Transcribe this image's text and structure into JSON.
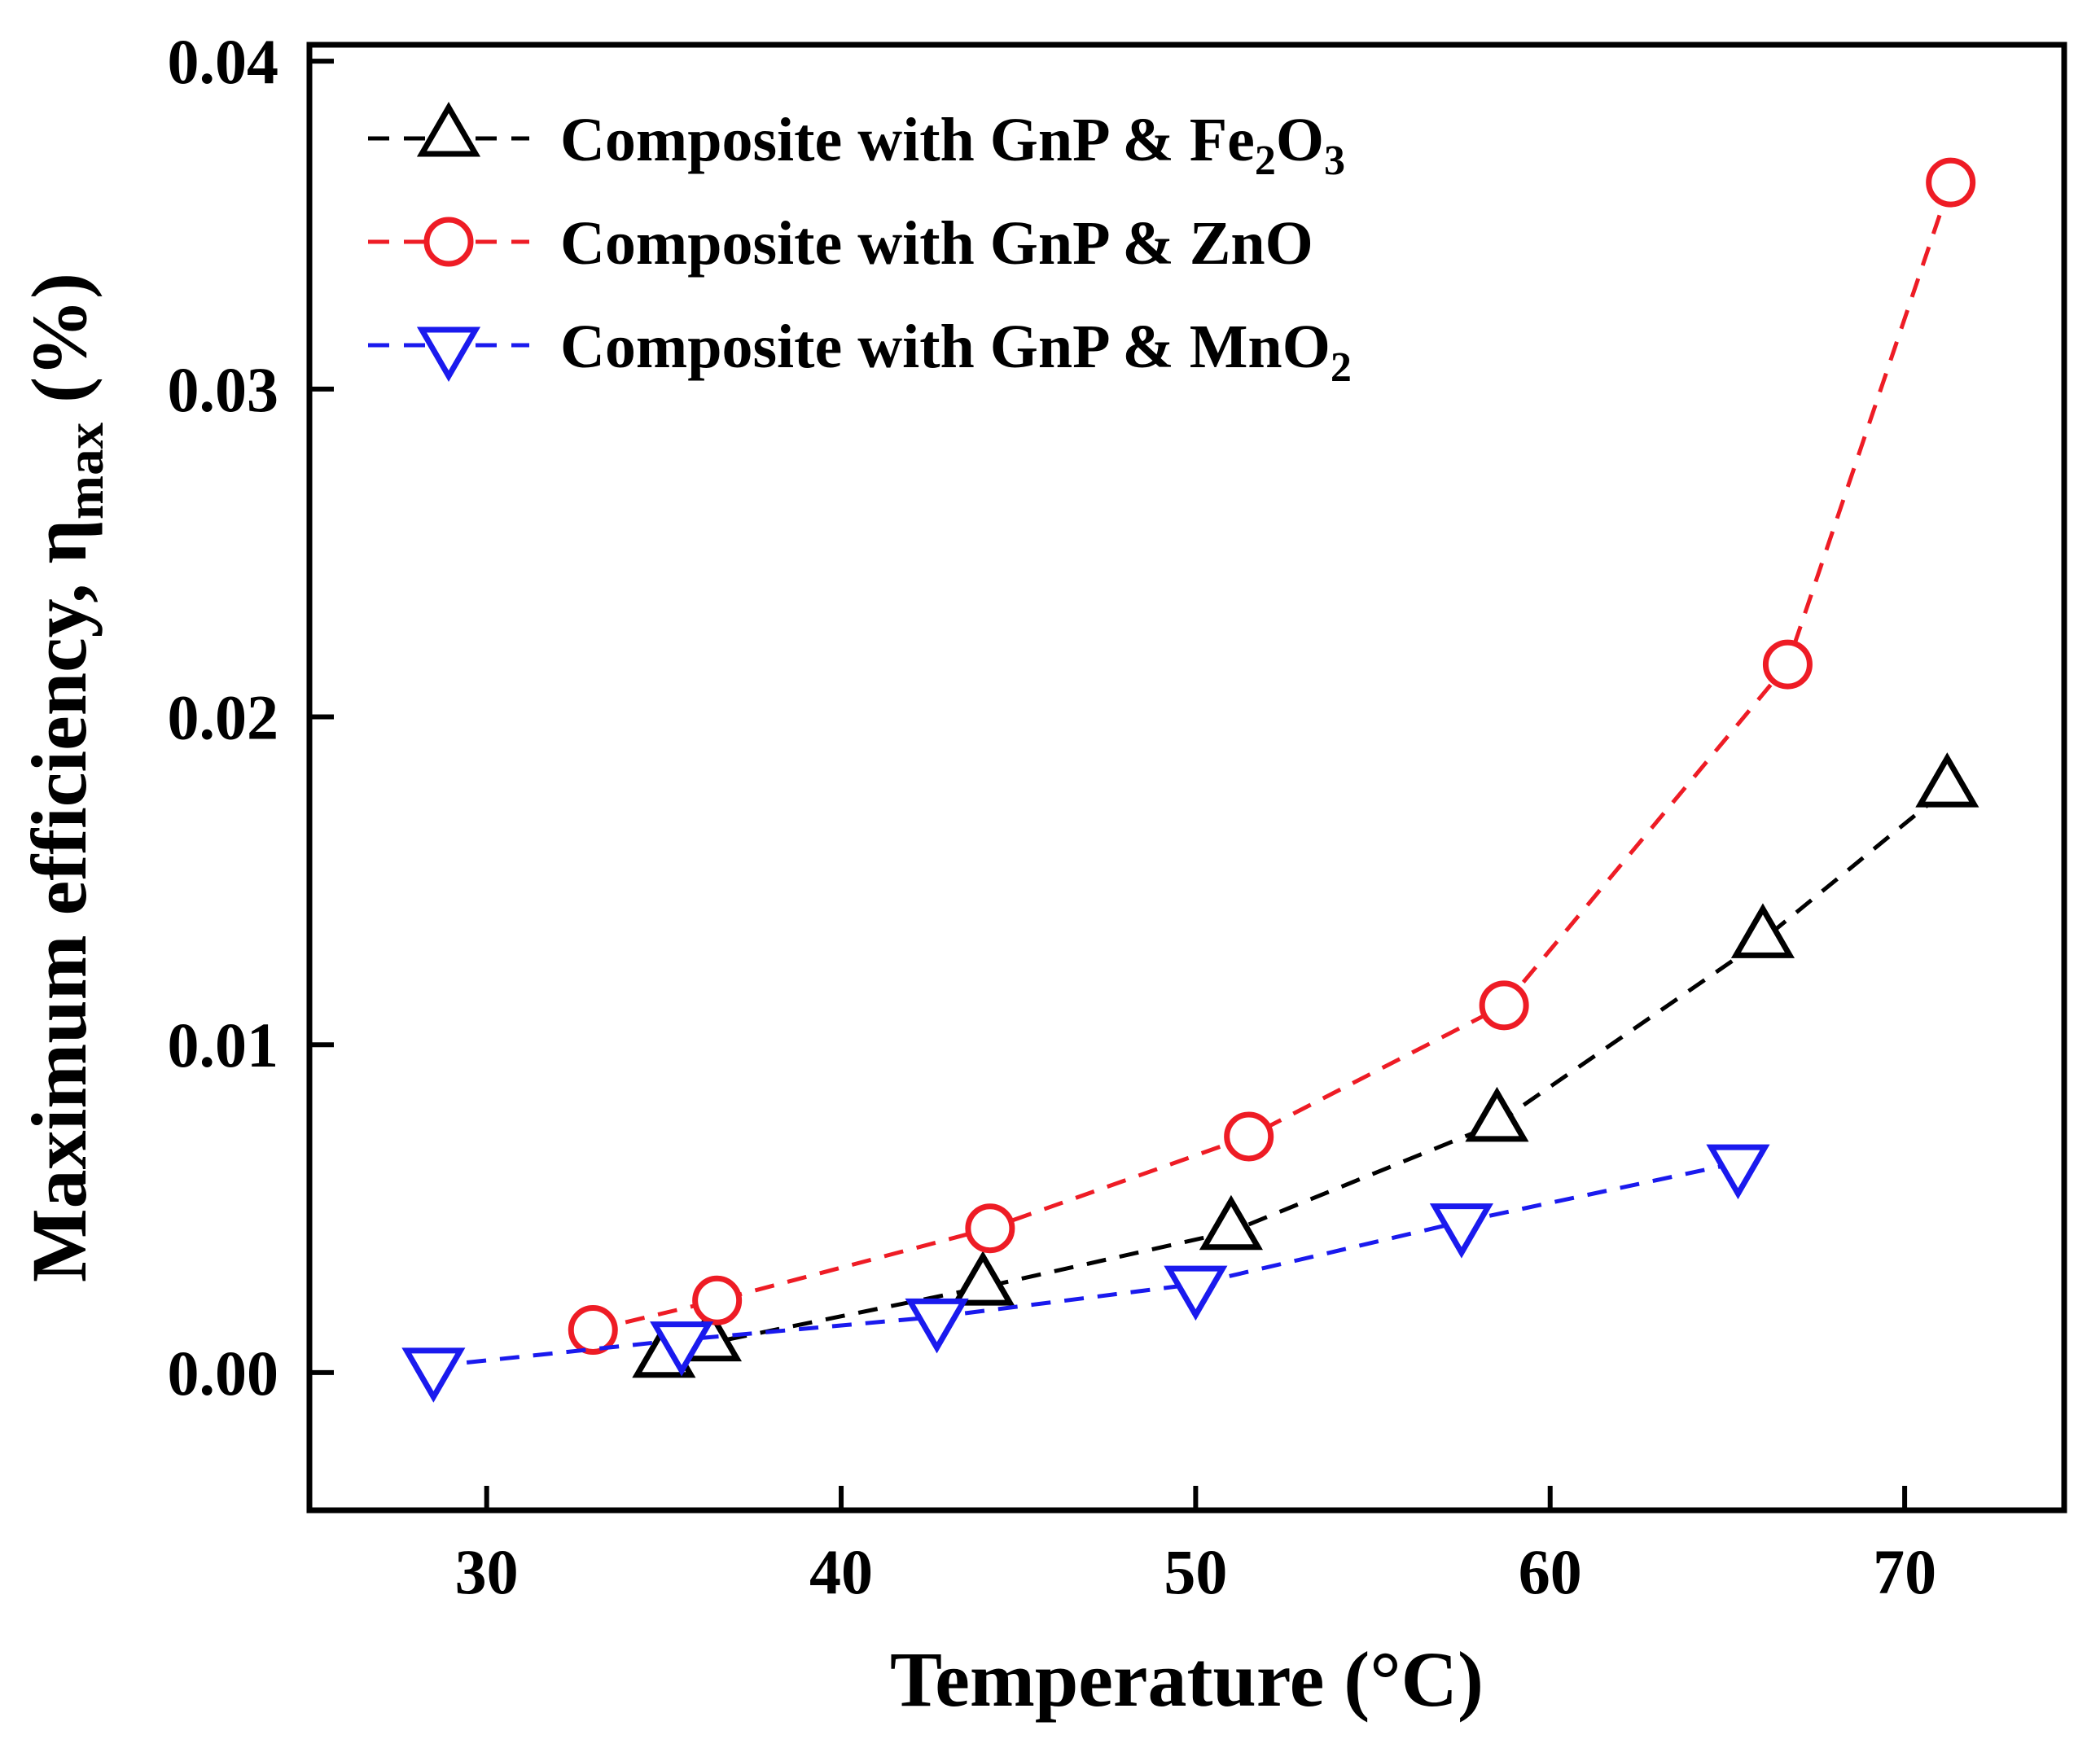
{
  "figure": {
    "background": "#ffffff",
    "frame_color": "#000000"
  },
  "chart_data": {
    "type": "scatter",
    "title": "",
    "xlabel": "Temperature (°C)",
    "ylabel": "Maximum efficiency, ηmax (%)",
    "ylabel_parts": [
      {
        "text": "Maximum efficiency, η",
        "sub": false
      },
      {
        "text": "max",
        "sub": true
      },
      {
        "text": " (%)",
        "sub": false
      }
    ],
    "xlim": [
      25,
      74.5
    ],
    "ylim": [
      -0.0042,
      0.0405
    ],
    "x_ticks": [
      30,
      40,
      50,
      60,
      70
    ],
    "x_tick_labels": [
      "30",
      "40",
      "50",
      "60",
      "70"
    ],
    "y_ticks": [
      0,
      0.01,
      0.02,
      0.03,
      0.04
    ],
    "y_tick_labels": [
      "0.00",
      "0.01",
      "0.02",
      "0.03",
      "0.04"
    ],
    "grid": false,
    "legend_position": "top-left",
    "series": [
      {
        "id": "fe2o3",
        "name": "Composite with GnP & Fe₂O₃",
        "label_parts": [
          {
            "text": "Composite with GnP & Fe",
            "sub": false
          },
          {
            "text": "2",
            "sub": true
          },
          {
            "text": "O",
            "sub": false
          },
          {
            "text": "3",
            "sub": true
          }
        ],
        "color": "#000000",
        "marker": "triangle-up",
        "line_style": "dashed",
        "x": [
          35.0,
          36.3,
          44.0,
          51.0,
          58.5,
          66.0,
          71.2
        ],
        "y": [
          0.0004,
          0.0009,
          0.0026,
          0.0043,
          0.0076,
          0.0132,
          0.0178
        ]
      },
      {
        "id": "zno",
        "name": "Composite with GnP & ZnO",
        "label_parts": [
          {
            "text": "Composite with GnP & ZnO",
            "sub": false
          }
        ],
        "color": "#ee1c25",
        "marker": "circle",
        "line_style": "dashed",
        "x": [
          33.0,
          36.5,
          44.2,
          51.5,
          58.7,
          66.7,
          71.3
        ],
        "y": [
          0.0013,
          0.0022,
          0.0044,
          0.0072,
          0.0112,
          0.0216,
          0.0363
        ]
      },
      {
        "id": "mno2",
        "name": "Composite with GnP & MnO₂",
        "label_parts": [
          {
            "text": "Composite with GnP & MnO",
            "sub": false
          },
          {
            "text": "2",
            "sub": true
          }
        ],
        "color": "#1a1aee",
        "marker": "triangle-down",
        "line_style": "dashed",
        "x": [
          28.5,
          35.5,
          42.7,
          50.0,
          57.5,
          65.3
        ],
        "y": [
          0.0002,
          0.001,
          0.0017,
          0.0027,
          0.0046,
          0.0064
        ]
      }
    ]
  }
}
